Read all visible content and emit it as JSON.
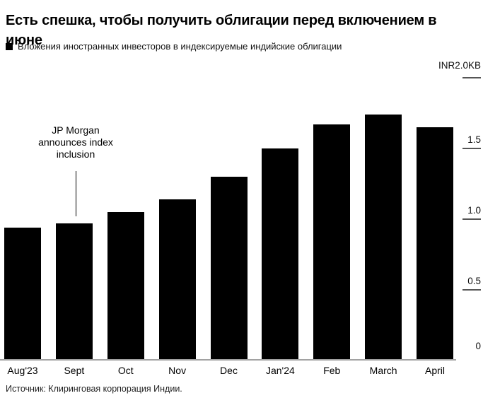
{
  "header": {
    "title_line1": "Есть спешка, чтобы получить облигации перед включением в",
    "title_line2": "июне",
    "legend_label": "Вложения иностранных инвесторов в индексируемые индийские облигации"
  },
  "axis": {
    "top_label": "INR2.0KB",
    "ticks": [
      "1.5",
      "1.0",
      "0.5",
      "0"
    ]
  },
  "annotation": {
    "lines": [
      "JP Morgan",
      "announces index",
      "inclusion"
    ]
  },
  "source": "Источник: Клиринговая корпорация Индии.",
  "colors": {
    "bar": "#000000",
    "baseline": "#a2a2a2",
    "tick_dash": "#555555"
  },
  "chart_data": {
    "type": "bar",
    "title": "Есть спешка, чтобы получить облигации перед включением в июне",
    "legend_entries": [
      "Вложения иностранных инвесторов в индексируемые индийские облигации"
    ],
    "legend_position": "top-left",
    "categories": [
      "Aug'23",
      "Sept",
      "Oct",
      "Nov",
      "Dec",
      "Jan'24",
      "Feb",
      "March",
      "April"
    ],
    "values": [
      0.94,
      0.97,
      1.05,
      1.14,
      1.3,
      1.5,
      1.67,
      1.74,
      1.65
    ],
    "ylabel_top": "INR2.0KB",
    "ylim": [
      0,
      2.0
    ],
    "ytick_values": [
      0,
      0.5,
      1.0,
      1.5,
      2.0
    ],
    "ytick_side": "right",
    "grid": false,
    "bar_color": "#000000",
    "annotation": "JP Morgan announces index inclusion",
    "annotation_target": "Sept",
    "source": "Источник: Клиринговая корпорация Индии."
  }
}
